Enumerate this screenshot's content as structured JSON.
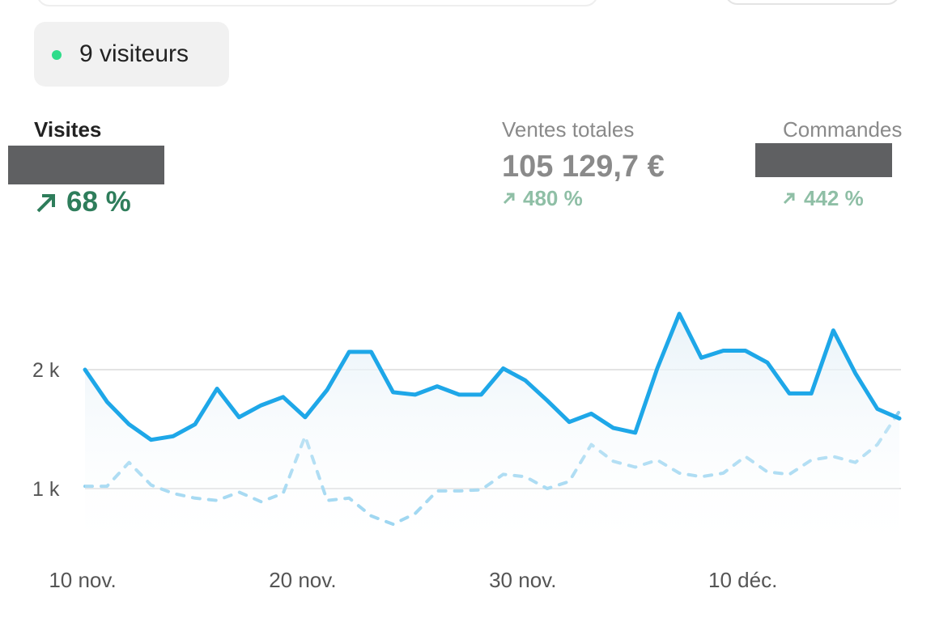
{
  "header": {
    "live_visitors": "9 visiteurs"
  },
  "metrics": [
    {
      "label": "Visites",
      "change": "68 %"
    },
    {
      "label": "Ventes totales",
      "value": "105 129,7 €",
      "change": "480 %"
    },
    {
      "label": "Commandes",
      "change": "442 %"
    }
  ],
  "chart_data": {
    "type": "line",
    "categories": [
      "10 nov.",
      null,
      null,
      null,
      null,
      null,
      null,
      null,
      null,
      null,
      "20 nov.",
      null,
      null,
      null,
      null,
      null,
      null,
      null,
      null,
      null,
      "30 nov.",
      null,
      null,
      null,
      null,
      null,
      null,
      null,
      null,
      null,
      "10 déc.",
      null,
      null,
      null,
      null,
      null,
      null,
      null
    ],
    "series": [
      {
        "color": "#1ea7e8",
        "dashed": false,
        "fill": true,
        "values": [
          2000,
          1730,
          1540,
          1410,
          1440,
          1540,
          1840,
          1600,
          1700,
          1770,
          1600,
          1830,
          2150,
          2150,
          1810,
          1790,
          1860,
          1790,
          1790,
          2010,
          1910,
          1740,
          1560,
          1630,
          1510,
          1470,
          2010,
          2470,
          2100,
          2160,
          2160,
          2060,
          1800,
          1800,
          2330,
          1970,
          1670,
          1590
        ]
      },
      {
        "color": "#8fd0ef",
        "dashed": true,
        "fill": false,
        "values": [
          1020,
          1020,
          1220,
          1030,
          960,
          920,
          900,
          970,
          890,
          960,
          1440,
          900,
          920,
          770,
          700,
          790,
          980,
          980,
          990,
          1120,
          1100,
          1000,
          1060,
          1370,
          1230,
          1180,
          1240,
          1130,
          1100,
          1130,
          1270,
          1140,
          1120,
          1240,
          1270,
          1220,
          1370,
          1650
        ]
      }
    ],
    "ylim": [
      400,
      2700
    ],
    "yticks": [
      {
        "value": 1000,
        "label": "1 k"
      },
      {
        "value": 2000,
        "label": "2 k"
      }
    ],
    "grid": true
  }
}
